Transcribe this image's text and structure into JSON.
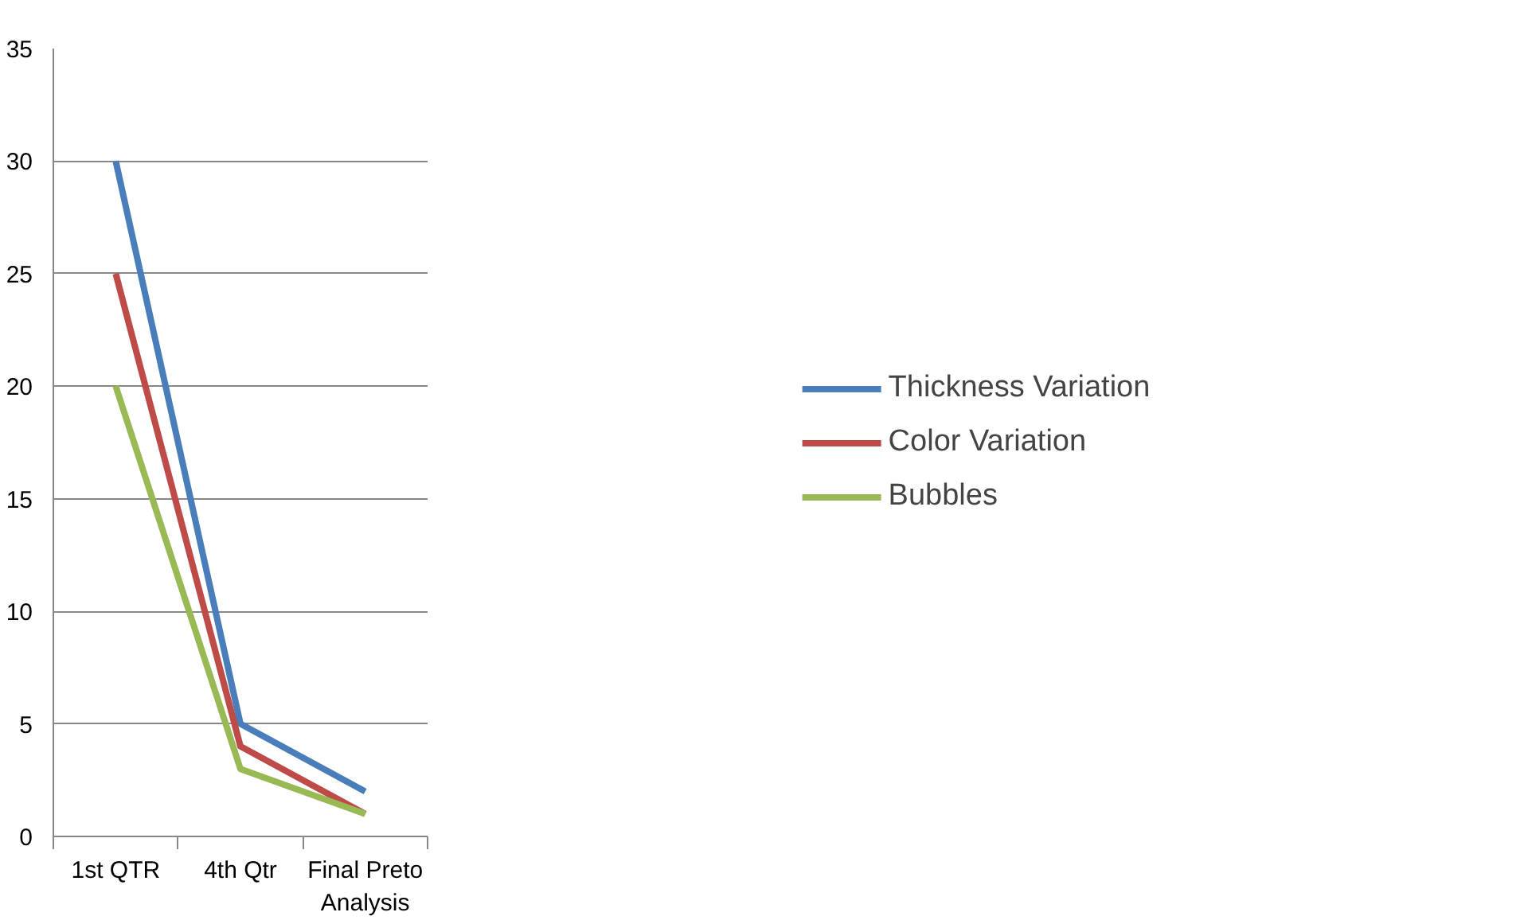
{
  "chart_data": {
    "type": "line",
    "categories": [
      "1st QTR",
      "4th Qtr",
      "Final Preto Analysis"
    ],
    "series": [
      {
        "name": "Thickness Variation",
        "color": "#4a7ebb",
        "values": [
          30,
          5,
          2
        ]
      },
      {
        "name": "Color Variation",
        "color": "#be4b48",
        "values": [
          25,
          4,
          1
        ]
      },
      {
        "name": "Bubbles",
        "color": "#98b954",
        "values": [
          20,
          3,
          1
        ]
      }
    ],
    "ylim": [
      0,
      35
    ],
    "yticks": [
      0,
      5,
      10,
      15,
      20,
      25,
      30,
      35
    ],
    "grid": "y",
    "legend": "right",
    "marker": "none",
    "line_style": "solid"
  }
}
